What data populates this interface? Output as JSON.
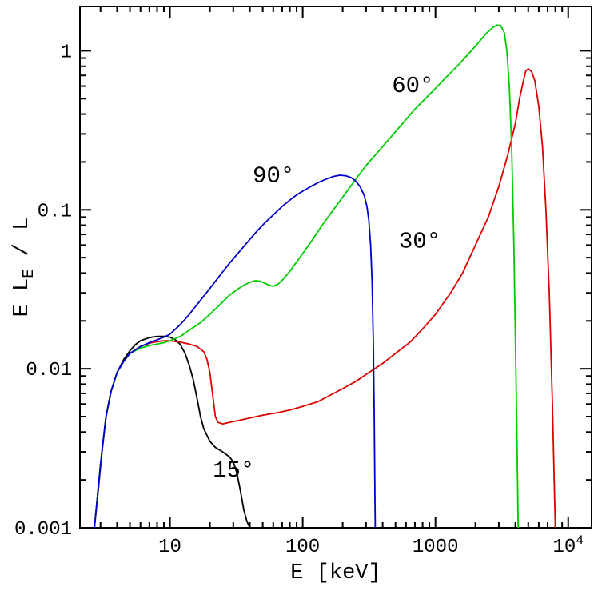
{
  "figure": {
    "background": "#ffffff",
    "frame_color": "#000000"
  },
  "chart_data": {
    "type": "line",
    "x_scale": "log",
    "y_scale": "log",
    "xlim": [
      2.1,
      15000
    ],
    "ylim": [
      0.001,
      1.9
    ],
    "xlabel": "E [keV]",
    "ylabel": "E L_E / L",
    "ylabel_parts": [
      {
        "t": "E L"
      },
      {
        "t": "E",
        "sub": true
      },
      {
        "t": " / L"
      }
    ],
    "x_ticks": [
      10,
      100,
      1000,
      10000
    ],
    "x_tick_labels": [
      "10",
      "100",
      "1000",
      "10^4"
    ],
    "y_ticks": [
      0.001,
      0.01,
      0.1,
      1
    ],
    "y_tick_labels": [
      "0.001",
      "0.01",
      "0.1",
      "1"
    ],
    "grid": false,
    "legend": "inline-curve-labels",
    "series": [
      {
        "name": "15deg",
        "label": "15°",
        "color": "#000000",
        "label_at": [
          21,
          0.0021
        ],
        "points": [
          [
            2.7,
            0.001
          ],
          [
            2.9,
            0.0018
          ],
          [
            3.1,
            0.0032
          ],
          [
            3.3,
            0.005
          ],
          [
            3.6,
            0.0072
          ],
          [
            4.0,
            0.0095
          ],
          [
            4.5,
            0.0115
          ],
          [
            5.0,
            0.013
          ],
          [
            5.5,
            0.0142
          ],
          [
            6.0,
            0.015
          ],
          [
            7.0,
            0.0157
          ],
          [
            8.0,
            0.016
          ],
          [
            9.0,
            0.016
          ],
          [
            10,
            0.0158
          ],
          [
            11,
            0.0152
          ],
          [
            12,
            0.0142
          ],
          [
            13,
            0.0125
          ],
          [
            14,
            0.0105
          ],
          [
            15,
            0.0085
          ],
          [
            16,
            0.0065
          ],
          [
            17,
            0.005
          ],
          [
            18,
            0.0042
          ],
          [
            20,
            0.0035
          ],
          [
            22,
            0.0032
          ],
          [
            25,
            0.003
          ],
          [
            28,
            0.0028
          ],
          [
            30,
            0.0026
          ],
          [
            32,
            0.0022
          ],
          [
            34,
            0.0017
          ],
          [
            36,
            0.0013
          ],
          [
            38,
            0.0011
          ],
          [
            40,
            0.001
          ]
        ]
      },
      {
        "name": "30deg",
        "label": "30°",
        "color": "#dd0000",
        "label_at": [
          530,
          0.058
        ],
        "points": [
          [
            2.7,
            0.001
          ],
          [
            3.0,
            0.0025
          ],
          [
            3.3,
            0.005
          ],
          [
            3.6,
            0.0072
          ],
          [
            4.0,
            0.0095
          ],
          [
            4.5,
            0.0112
          ],
          [
            5.0,
            0.0125
          ],
          [
            6.0,
            0.0138
          ],
          [
            7.0,
            0.0145
          ],
          [
            8.0,
            0.0148
          ],
          [
            9.0,
            0.015
          ],
          [
            10,
            0.015
          ],
          [
            12,
            0.0147
          ],
          [
            14,
            0.0143
          ],
          [
            16,
            0.0138
          ],
          [
            18,
            0.0128
          ],
          [
            19,
            0.0115
          ],
          [
            20,
            0.0095
          ],
          [
            21,
            0.0068
          ],
          [
            22,
            0.005
          ],
          [
            23,
            0.0046
          ],
          [
            25,
            0.0045
          ],
          [
            28,
            0.0046
          ],
          [
            32,
            0.0047
          ],
          [
            40,
            0.0049
          ],
          [
            50,
            0.0051
          ],
          [
            65,
            0.0053
          ],
          [
            80,
            0.0055
          ],
          [
            100,
            0.0058
          ],
          [
            130,
            0.0062
          ],
          [
            160,
            0.0068
          ],
          [
            200,
            0.0075
          ],
          [
            250,
            0.0083
          ],
          [
            300,
            0.0092
          ],
          [
            400,
            0.0108
          ],
          [
            500,
            0.0125
          ],
          [
            650,
            0.0148
          ],
          [
            800,
            0.0178
          ],
          [
            1000,
            0.022
          ],
          [
            1300,
            0.03
          ],
          [
            1600,
            0.04
          ],
          [
            2000,
            0.06
          ],
          [
            2500,
            0.09
          ],
          [
            3000,
            0.14
          ],
          [
            3500,
            0.22
          ],
          [
            4000,
            0.35
          ],
          [
            4300,
            0.5
          ],
          [
            4600,
            0.65
          ],
          [
            4800,
            0.75
          ],
          [
            5000,
            0.77
          ],
          [
            5300,
            0.74
          ],
          [
            5600,
            0.65
          ],
          [
            6000,
            0.45
          ],
          [
            6400,
            0.25
          ],
          [
            6800,
            0.1
          ],
          [
            7200,
            0.03
          ],
          [
            7600,
            0.006
          ],
          [
            7900,
            0.0015
          ],
          [
            8000,
            0.001
          ]
        ]
      },
      {
        "name": "60deg",
        "label": "60°",
        "color": "#00cc00",
        "label_at": [
          470,
          0.55
        ],
        "points": [
          [
            2.7,
            0.001
          ],
          [
            3.0,
            0.0025
          ],
          [
            3.3,
            0.005
          ],
          [
            3.6,
            0.0072
          ],
          [
            4.0,
            0.0095
          ],
          [
            4.5,
            0.0112
          ],
          [
            5.0,
            0.0125
          ],
          [
            6.0,
            0.0135
          ],
          [
            7.0,
            0.014
          ],
          [
            8.0,
            0.0143
          ],
          [
            9,
            0.0146
          ],
          [
            10,
            0.015
          ],
          [
            12,
            0.016
          ],
          [
            14,
            0.0175
          ],
          [
            17,
            0.0195
          ],
          [
            20,
            0.022
          ],
          [
            24,
            0.0255
          ],
          [
            28,
            0.029
          ],
          [
            32,
            0.0315
          ],
          [
            36,
            0.0335
          ],
          [
            40,
            0.035
          ],
          [
            44,
            0.0358
          ],
          [
            48,
            0.0355
          ],
          [
            52,
            0.0345
          ],
          [
            56,
            0.0335
          ],
          [
            60,
            0.033
          ],
          [
            65,
            0.034
          ],
          [
            70,
            0.036
          ],
          [
            80,
            0.041
          ],
          [
            90,
            0.047
          ],
          [
            100,
            0.053
          ],
          [
            120,
            0.066
          ],
          [
            140,
            0.08
          ],
          [
            170,
            0.1
          ],
          [
            200,
            0.12
          ],
          [
            250,
            0.155
          ],
          [
            300,
            0.19
          ],
          [
            350,
            0.22
          ],
          [
            400,
            0.25
          ],
          [
            500,
            0.31
          ],
          [
            600,
            0.37
          ],
          [
            700,
            0.43
          ],
          [
            800,
            0.48
          ],
          [
            1000,
            0.58
          ],
          [
            1200,
            0.68
          ],
          [
            1500,
            0.82
          ],
          [
            1800,
            0.97
          ],
          [
            2100,
            1.12
          ],
          [
            2400,
            1.28
          ],
          [
            2700,
            1.4
          ],
          [
            2900,
            1.45
          ],
          [
            3100,
            1.44
          ],
          [
            3300,
            1.3
          ],
          [
            3450,
            1.0
          ],
          [
            3600,
            0.6
          ],
          [
            3750,
            0.25
          ],
          [
            3900,
            0.06
          ],
          [
            4000,
            0.015
          ],
          [
            4100,
            0.004
          ],
          [
            4200,
            0.001
          ]
        ]
      },
      {
        "name": "90deg",
        "label": "90°",
        "color": "#0000cc",
        "label_at": [
          42,
          0.15
        ],
        "points": [
          [
            2.7,
            0.001
          ],
          [
            3.0,
            0.0025
          ],
          [
            3.3,
            0.005
          ],
          [
            3.6,
            0.0072
          ],
          [
            4.0,
            0.0095
          ],
          [
            4.5,
            0.0112
          ],
          [
            5.0,
            0.0125
          ],
          [
            6.0,
            0.0138
          ],
          [
            7.0,
            0.0146
          ],
          [
            8.0,
            0.0152
          ],
          [
            9,
            0.0158
          ],
          [
            10,
            0.0165
          ],
          [
            12,
            0.019
          ],
          [
            14,
            0.022
          ],
          [
            17,
            0.027
          ],
          [
            20,
            0.032
          ],
          [
            24,
            0.039
          ],
          [
            28,
            0.046
          ],
          [
            33,
            0.054
          ],
          [
            38,
            0.062
          ],
          [
            45,
            0.073
          ],
          [
            52,
            0.083
          ],
          [
            60,
            0.093
          ],
          [
            70,
            0.105
          ],
          [
            80,
            0.115
          ],
          [
            90,
            0.124
          ],
          [
            100,
            0.131
          ],
          [
            115,
            0.14
          ],
          [
            130,
            0.148
          ],
          [
            150,
            0.156
          ],
          [
            170,
            0.162
          ],
          [
            190,
            0.165
          ],
          [
            210,
            0.164
          ],
          [
            230,
            0.16
          ],
          [
            250,
            0.152
          ],
          [
            270,
            0.14
          ],
          [
            290,
            0.124
          ],
          [
            305,
            0.105
          ],
          [
            315,
            0.085
          ],
          [
            325,
            0.06
          ],
          [
            333,
            0.035
          ],
          [
            340,
            0.015
          ],
          [
            346,
            0.005
          ],
          [
            350,
            0.0015
          ],
          [
            352,
            0.001
          ]
        ]
      }
    ]
  }
}
